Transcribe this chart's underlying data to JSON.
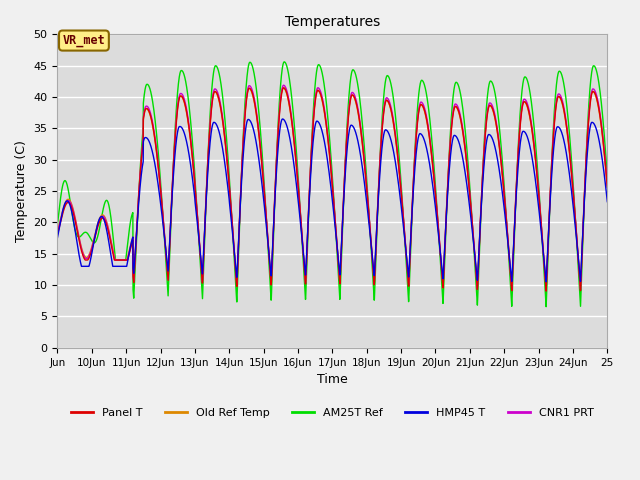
{
  "title": "Temperatures",
  "xlabel": "Time",
  "ylabel": "Temperature (C)",
  "ylim": [
    0,
    50
  ],
  "xlim": [
    9,
    25
  ],
  "annotation": "VR_met",
  "background_color": "#dcdcdc",
  "grid_color": "#ffffff",
  "xticks": [
    9,
    10,
    11,
    12,
    13,
    14,
    15,
    16,
    17,
    18,
    19,
    20,
    21,
    22,
    23,
    24,
    25
  ],
  "xtick_labels": [
    "Jun",
    "10Jun",
    "11Jun",
    "12Jun",
    "13Jun",
    "14Jun",
    "15Jun",
    "16Jun",
    "17Jun",
    "18Jun",
    "19Jun",
    "20Jun",
    "21Jun",
    "22Jun",
    "23Jun",
    "24Jun",
    "25"
  ],
  "yticks": [
    0,
    5,
    10,
    15,
    20,
    25,
    30,
    35,
    40,
    45,
    50
  ],
  "legend": [
    {
      "label": "Panel T",
      "color": "#dd0000"
    },
    {
      "label": "Old Ref Temp",
      "color": "#dd8800"
    },
    {
      "label": "AM25T Ref",
      "color": "#00dd00"
    },
    {
      "label": "HMP45 T",
      "color": "#0000dd"
    },
    {
      "label": "CNR1 PRT",
      "color": "#cc00cc"
    }
  ],
  "line_width": 1.0,
  "figsize": [
    6.4,
    4.8
  ],
  "dpi": 100,
  "fig_facecolor": "#f0f0f0"
}
